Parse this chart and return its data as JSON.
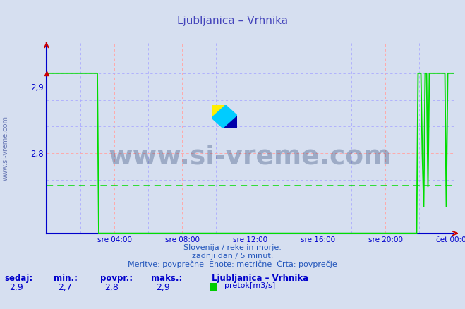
{
  "title": "Ljubljanica – Vrhnika",
  "title_color": "#4444bb",
  "bg_color": "#d6dff0",
  "plot_bg_color": "#d6dff0",
  "line_color": "#00dd00",
  "avg_line_color": "#00dd00",
  "avg_value": 2.752,
  "y_min": 2.68,
  "y_max": 2.965,
  "y_ticks": [
    2.8,
    2.9
  ],
  "x_min": 0,
  "x_max": 288,
  "x_tick_positions": [
    48,
    96,
    144,
    192,
    240,
    288
  ],
  "x_tick_labels": [
    "sre 04:00",
    "sre 08:00",
    "sre 12:00",
    "sre 16:00",
    "sre 20:00",
    "čet 00:00"
  ],
  "grid_color_red": "#ffaaaa",
  "grid_color_blue": "#aaaaff",
  "axis_color": "#0000cc",
  "watermark_text": "www.si-vreme.com",
  "watermark_color": "#1a3566",
  "watermark_alpha": 0.3,
  "subtitle1": "Slovenija / reke in morje.",
  "subtitle2": "zadnji dan / 5 minut.",
  "subtitle3": "Meritve: povprečne  Enote: metrične  Črta: povprečje",
  "subtitle_color": "#2255bb",
  "legend_title": "Ljubljanica – Vrhnika",
  "legend_label": "pretok[m3/s]",
  "legend_color": "#00cc00",
  "stats_labels": [
    "sedaj:",
    "min.:",
    "povpr.:",
    "maks.:"
  ],
  "stats_values": [
    "2,9",
    "2,7",
    "2,8",
    "2,9"
  ],
  "stats_color": "#0000cc",
  "yside_label": "www.si-vreme.com",
  "yside_color": "#5566aa"
}
